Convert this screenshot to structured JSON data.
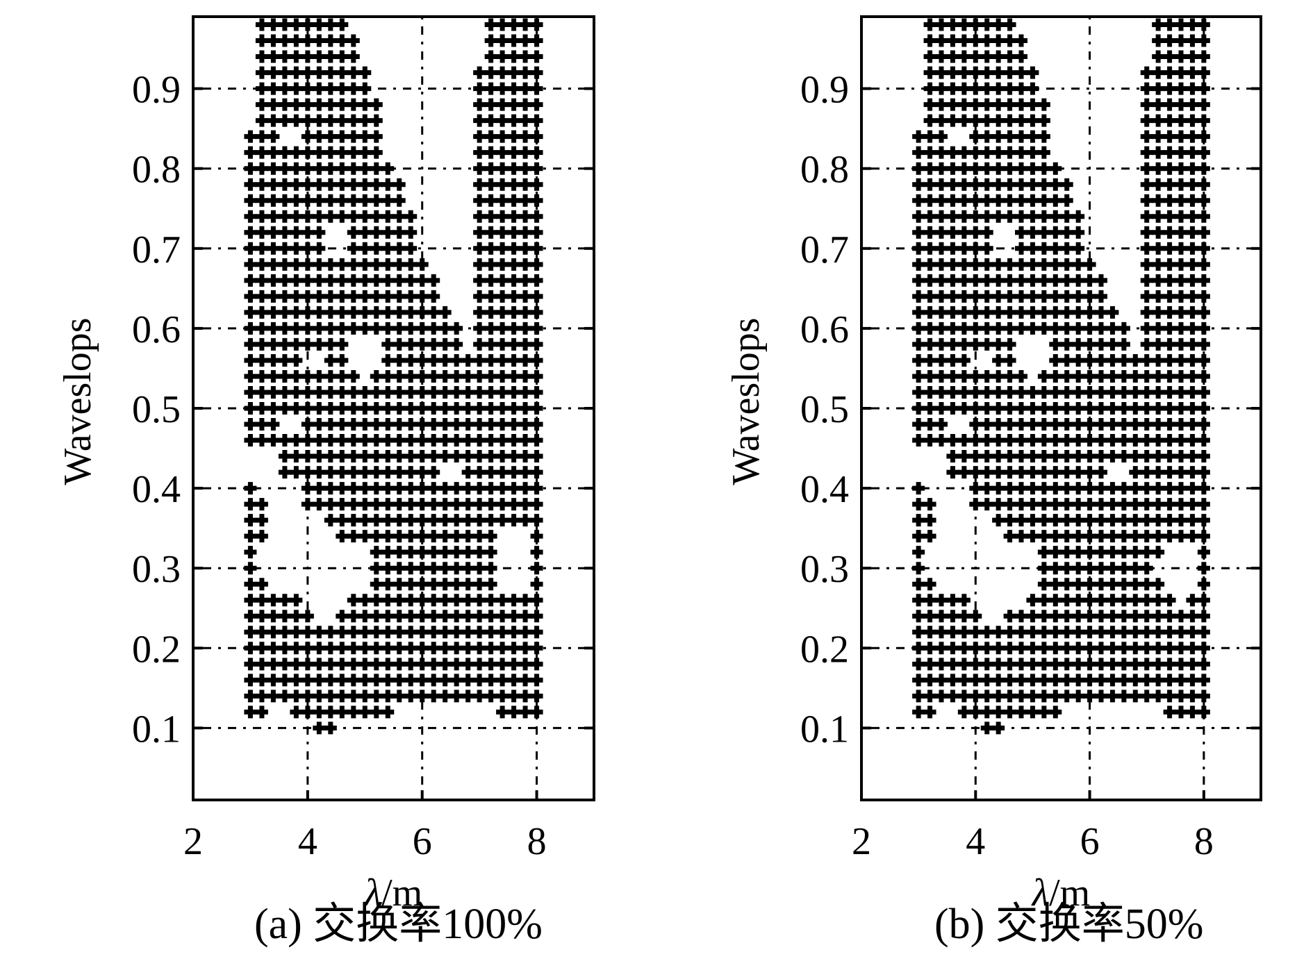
{
  "chart_data": [
    {
      "type": "scatter",
      "caption": "(a) 交换率100%",
      "xlabel": "λ/m",
      "ylabel": "Waveslops",
      "xlim": [
        2,
        9
      ],
      "ylim": [
        0.01,
        0.99
      ],
      "xticks": [
        2,
        4,
        6,
        8
      ],
      "yticks": [
        0.1,
        0.2,
        0.3,
        0.4,
        0.5,
        0.6,
        0.7,
        0.8,
        0.9
      ],
      "grid": true,
      "grid_style": "dash-dot",
      "marker": "plus",
      "marker_color": "#000000",
      "grid_x": {
        "start": 3.0,
        "step": 0.2,
        "count": 26
      },
      "grid_y": {
        "start": 0.1,
        "step": 0.02,
        "count": 46
      },
      "column_ranges": [
        [
          0.12,
          0.84
        ],
        [
          0.12,
          0.98
        ],
        [
          0.14,
          0.98
        ],
        [
          0.14,
          0.98
        ],
        [
          0.12,
          0.98
        ],
        [
          0.12,
          0.98
        ],
        [
          0.1,
          0.98
        ],
        [
          0.1,
          0.98
        ],
        [
          0.12,
          0.98
        ],
        [
          0.12,
          0.96
        ],
        [
          0.12,
          0.92
        ],
        [
          0.12,
          0.88
        ],
        [
          0.12,
          0.8
        ],
        [
          0.14,
          0.78
        ],
        [
          0.14,
          0.74
        ],
        [
          0.14,
          0.68
        ],
        [
          0.14,
          0.66
        ],
        [
          0.14,
          0.62
        ],
        [
          0.14,
          0.6
        ],
        [
          0.14,
          0.56
        ],
        [
          0.14,
          0.92
        ],
        [
          0.14,
          0.98
        ],
        [
          0.12,
          0.98
        ],
        [
          0.12,
          0.98
        ],
        [
          0.12,
          0.98
        ],
        [
          0.12,
          0.98
        ]
      ],
      "holes": [
        [
          4.0,
          0.32,
          0.05
        ],
        [
          4.7,
          0.3,
          0.04
        ],
        [
          4.3,
          0.26,
          0.03
        ],
        [
          3.5,
          0.31,
          0.04
        ],
        [
          3.2,
          0.43,
          0.03
        ],
        [
          3.7,
          0.48,
          0.02
        ],
        [
          4.1,
          0.56,
          0.02
        ],
        [
          3.6,
          0.84,
          0.02
        ],
        [
          5.0,
          0.57,
          0.03
        ],
        [
          6.5,
          0.42,
          0.02
        ],
        [
          7.6,
          0.31,
          0.04
        ],
        [
          3.6,
          0.38,
          0.03
        ],
        [
          4.5,
          0.71,
          0.02
        ]
      ]
    },
    {
      "type": "scatter",
      "caption": "(b) 交换率50%",
      "xlabel": "λ/m",
      "ylabel": "Waveslops",
      "xlim": [
        2,
        9
      ],
      "ylim": [
        0.01,
        0.99
      ],
      "xticks": [
        2,
        4,
        6,
        8
      ],
      "yticks": [
        0.1,
        0.2,
        0.3,
        0.4,
        0.5,
        0.6,
        0.7,
        0.8,
        0.9
      ],
      "grid": true,
      "grid_style": "dash-dot",
      "marker": "plus",
      "marker_color": "#000000",
      "grid_x": {
        "start": 3.0,
        "step": 0.2,
        "count": 26
      },
      "grid_y": {
        "start": 0.1,
        "step": 0.02,
        "count": 46
      },
      "column_ranges": [
        [
          0.12,
          0.84
        ],
        [
          0.12,
          0.98
        ],
        [
          0.14,
          0.98
        ],
        [
          0.14,
          0.98
        ],
        [
          0.12,
          0.98
        ],
        [
          0.12,
          0.98
        ],
        [
          0.1,
          0.98
        ],
        [
          0.1,
          0.98
        ],
        [
          0.12,
          0.98
        ],
        [
          0.12,
          0.96
        ],
        [
          0.12,
          0.92
        ],
        [
          0.12,
          0.88
        ],
        [
          0.12,
          0.8
        ],
        [
          0.14,
          0.78
        ],
        [
          0.14,
          0.74
        ],
        [
          0.14,
          0.68
        ],
        [
          0.14,
          0.66
        ],
        [
          0.14,
          0.62
        ],
        [
          0.14,
          0.6
        ],
        [
          0.14,
          0.56
        ],
        [
          0.14,
          0.92
        ],
        [
          0.14,
          0.98
        ],
        [
          0.12,
          0.98
        ],
        [
          0.12,
          0.98
        ],
        [
          0.12,
          0.98
        ],
        [
          0.12,
          0.98
        ]
      ],
      "holes": [
        [
          4.0,
          0.32,
          0.05
        ],
        [
          4.8,
          0.3,
          0.04
        ],
        [
          4.3,
          0.26,
          0.03
        ],
        [
          3.5,
          0.31,
          0.04
        ],
        [
          3.2,
          0.43,
          0.03
        ],
        [
          3.7,
          0.48,
          0.02
        ],
        [
          4.1,
          0.56,
          0.02
        ],
        [
          3.6,
          0.84,
          0.02
        ],
        [
          5.0,
          0.57,
          0.03
        ],
        [
          6.5,
          0.42,
          0.02
        ],
        [
          7.6,
          0.3,
          0.04
        ],
        [
          3.6,
          0.38,
          0.03
        ],
        [
          4.5,
          0.71,
          0.02
        ]
      ]
    }
  ]
}
